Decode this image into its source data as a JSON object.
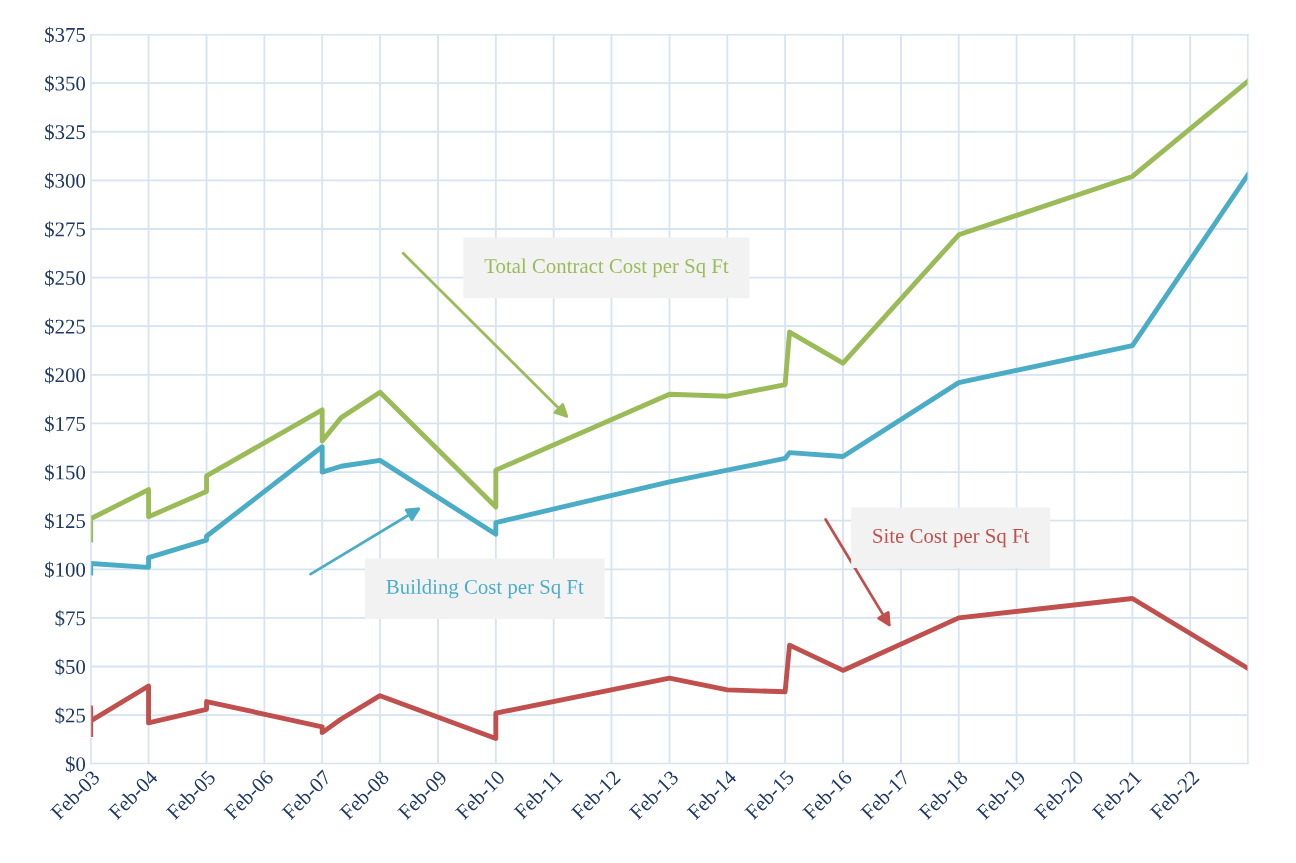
{
  "chart_data": {
    "type": "line",
    "grid": true,
    "legend": false,
    "marker": "none",
    "line_style": "solid",
    "xlim": [
      "2003-02",
      "2023-02"
    ],
    "ylim": [
      0,
      375
    ],
    "xticks": [
      {
        "value": "2003-02",
        "label": "Feb-03"
      },
      {
        "value": "2004-02",
        "label": "Feb-04"
      },
      {
        "value": "2005-02",
        "label": "Feb-05"
      },
      {
        "value": "2006-02",
        "label": "Feb-06"
      },
      {
        "value": "2007-02",
        "label": "Feb-07"
      },
      {
        "value": "2008-02",
        "label": "Feb-08"
      },
      {
        "value": "2009-02",
        "label": "Feb-09"
      },
      {
        "value": "2010-02",
        "label": "Feb-10"
      },
      {
        "value": "2011-02",
        "label": "Feb-11"
      },
      {
        "value": "2012-02",
        "label": "Feb-12"
      },
      {
        "value": "2013-02",
        "label": "Feb-13"
      },
      {
        "value": "2014-02",
        "label": "Feb-14"
      },
      {
        "value": "2015-02",
        "label": "Feb-15"
      },
      {
        "value": "2016-02",
        "label": "Feb-16"
      },
      {
        "value": "2017-02",
        "label": "Feb-17"
      },
      {
        "value": "2018-02",
        "label": "Feb-18"
      },
      {
        "value": "2019-02",
        "label": "Feb-19"
      },
      {
        "value": "2020-02",
        "label": "Feb-20"
      },
      {
        "value": "2021-02",
        "label": "Feb-21"
      },
      {
        "value": "2022-02",
        "label": "Feb-22"
      },
      {
        "value": "2023-02",
        "label": null
      }
    ],
    "yticks": [
      {
        "value": 0,
        "label": "$0"
      },
      {
        "value": 25,
        "label": "$25"
      },
      {
        "value": 50,
        "label": "$50"
      },
      {
        "value": 75,
        "label": "$75"
      },
      {
        "value": 100,
        "label": "$100"
      },
      {
        "value": 125,
        "label": "$125"
      },
      {
        "value": 150,
        "label": "$150"
      },
      {
        "value": 175,
        "label": "$175"
      },
      {
        "value": 200,
        "label": "$200"
      },
      {
        "value": 225,
        "label": "$225"
      },
      {
        "value": 250,
        "label": "$250"
      },
      {
        "value": 275,
        "label": "$275"
      },
      {
        "value": 300,
        "label": "$300"
      },
      {
        "value": 325,
        "label": "$325"
      },
      {
        "value": 350,
        "label": "$350"
      },
      {
        "value": 375,
        "label": "$375"
      }
    ],
    "series": [
      {
        "name": "Total Contract Cost per Sq Ft",
        "color": "#9bbb59",
        "x": [
          "2003-02",
          "2003-02",
          "2004-02",
          "2004-02",
          "2005-02",
          "2005-02",
          "2007-02",
          "2007-02",
          "2007-06",
          "2008-02",
          "2010-02",
          "2010-02",
          "2013-02",
          "2014-02",
          "2015-02",
          "2015-03",
          "2016-02",
          "2018-02",
          "2021-02",
          "2023-02"
        ],
        "values": [
          115,
          126,
          141,
          127,
          140,
          148,
          182,
          166,
          178,
          191,
          132,
          151,
          190,
          189,
          195,
          222,
          206,
          272,
          302,
          351
        ]
      },
      {
        "name": "Building Cost per Sq Ft",
        "color": "#4bacc6",
        "x": [
          "2003-02",
          "2003-02",
          "2004-02",
          "2004-02",
          "2005-02",
          "2005-02",
          "2007-02",
          "2007-02",
          "2007-06",
          "2008-02",
          "2010-02",
          "2010-02",
          "2013-02",
          "2014-02",
          "2015-02",
          "2015-03",
          "2016-02",
          "2018-02",
          "2021-02",
          "2023-02"
        ],
        "values": [
          98,
          103,
          101,
          106,
          115,
          117,
          163,
          150,
          153,
          156,
          118,
          124,
          145,
          151,
          157,
          160,
          158,
          196,
          215,
          303
        ]
      },
      {
        "name": "Site Cost per Sq Ft",
        "color": "#c0504d",
        "x": [
          "2003-02",
          "2003-02",
          "2003-02",
          "2004-02",
          "2004-02",
          "2005-02",
          "2005-02",
          "2007-02",
          "2007-02",
          "2007-06",
          "2008-02",
          "2010-02",
          "2010-02",
          "2013-02",
          "2014-02",
          "2015-02",
          "2015-03",
          "2016-02",
          "2018-02",
          "2021-02",
          "2023-02"
        ],
        "values": [
          15,
          29,
          22,
          40,
          21,
          28,
          32,
          19,
          16,
          23,
          35,
          13,
          26,
          44,
          38,
          37,
          61,
          48,
          75,
          85,
          49
        ]
      }
    ]
  }
}
